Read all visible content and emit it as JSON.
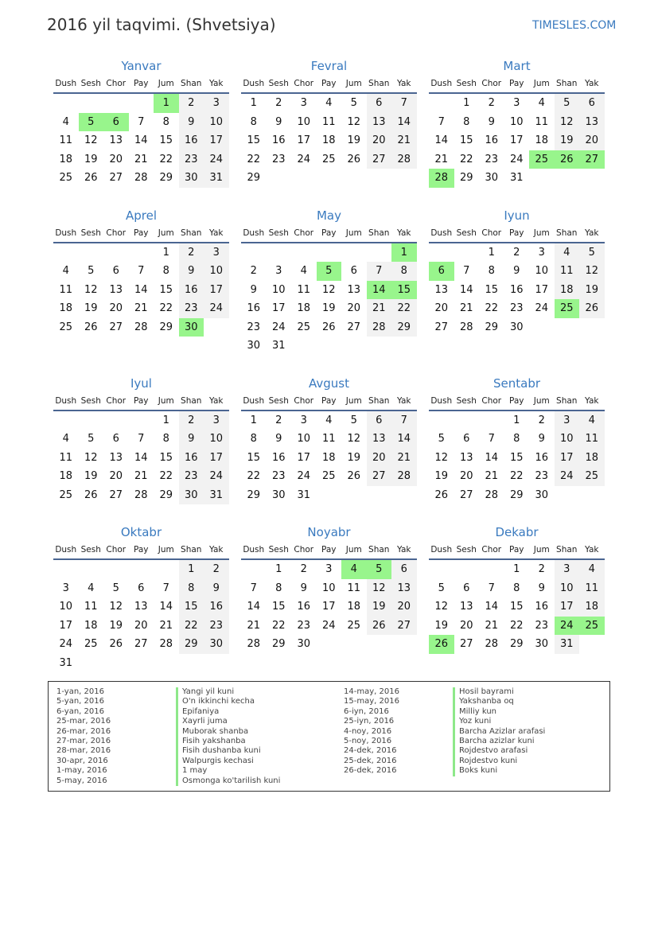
{
  "header": {
    "title": "2016 yil taqvimi. (Shvetsiya)",
    "brand": "TIMESLES.COM"
  },
  "year": 2016,
  "weekdays": [
    "Dush",
    "Sesh",
    "Chor",
    "Pay",
    "Jum",
    "Shan",
    "Yak"
  ],
  "colors": {
    "accent": "#3a7abf",
    "holiday": "#98f58c",
    "weekend": "#f2f2f2"
  },
  "months": [
    {
      "name": "Yanvar",
      "holidays": [
        1,
        5,
        6
      ]
    },
    {
      "name": "Fevral",
      "holidays": []
    },
    {
      "name": "Mart",
      "holidays": [
        25,
        26,
        27,
        28
      ]
    },
    {
      "name": "Aprel",
      "holidays": [
        30
      ]
    },
    {
      "name": "May",
      "holidays": [
        1,
        5,
        14,
        15
      ]
    },
    {
      "name": "Iyun",
      "holidays": [
        6,
        25
      ]
    },
    {
      "name": "Iyul",
      "holidays": []
    },
    {
      "name": "Avgust",
      "holidays": []
    },
    {
      "name": "Sentabr",
      "holidays": []
    },
    {
      "name": "Oktabr",
      "holidays": []
    },
    {
      "name": "Noyabr",
      "holidays": [
        4,
        5
      ]
    },
    {
      "name": "Dekabr",
      "holidays": [
        24,
        25,
        26
      ]
    }
  ],
  "legend": [
    {
      "date": "1-yan, 2016",
      "name": "Yangi yil kuni"
    },
    {
      "date": "5-yan, 2016",
      "name": "O'n ikkinchi kecha"
    },
    {
      "date": "6-yan, 2016",
      "name": "Epifaniya"
    },
    {
      "date": "25-mar, 2016",
      "name": "Xayrli juma"
    },
    {
      "date": "26-mar, 2016",
      "name": "Muborak shanba"
    },
    {
      "date": "27-mar, 2016",
      "name": "Fisih yakshanba"
    },
    {
      "date": "28-mar, 2016",
      "name": "Fisih dushanba kuni"
    },
    {
      "date": "30-apr, 2016",
      "name": "Walpurgis kechasi"
    },
    {
      "date": "1-may, 2016",
      "name": "1 may"
    },
    {
      "date": "5-may, 2016",
      "name": "Osmonga ko'tarilish kuni"
    },
    {
      "date": "14-may, 2016",
      "name": "Hosil bayrami"
    },
    {
      "date": "15-may, 2016",
      "name": "Yakshanba oq"
    },
    {
      "date": "6-iyn, 2016",
      "name": "Milliy kun"
    },
    {
      "date": "25-iyn, 2016",
      "name": "Yoz kuni"
    },
    {
      "date": "4-noy, 2016",
      "name": "Barcha Azizlar arafasi"
    },
    {
      "date": "5-noy, 2016",
      "name": "Barcha azizlar kuni"
    },
    {
      "date": "24-dek, 2016",
      "name": "Rojdestvo arafasi"
    },
    {
      "date": "25-dek, 2016",
      "name": "Rojdestvo kuni"
    },
    {
      "date": "26-dek, 2016",
      "name": "Boks kuni"
    }
  ]
}
